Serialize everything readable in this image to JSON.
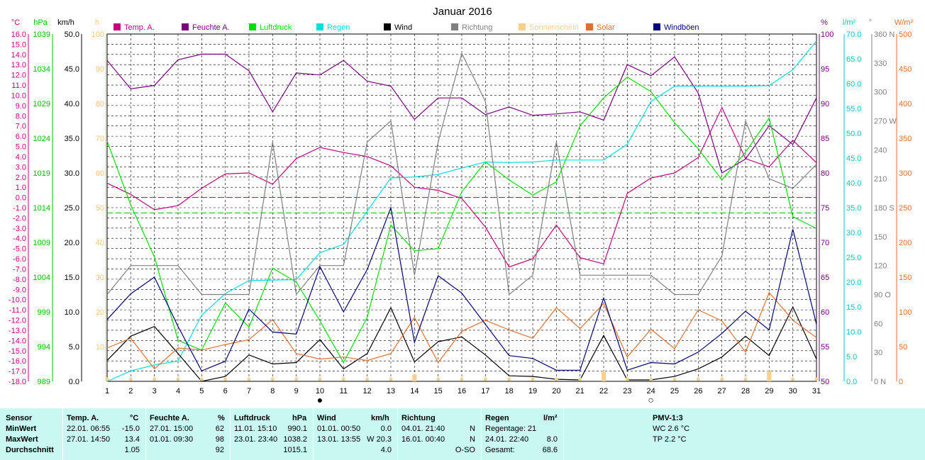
{
  "chart_data": {
    "type": "line",
    "title": "Januar 2016",
    "x": [
      1,
      2,
      3,
      4,
      5,
      6,
      7,
      8,
      9,
      10,
      11,
      12,
      13,
      14,
      15,
      16,
      17,
      18,
      19,
      20,
      21,
      22,
      23,
      24,
      25,
      26,
      27,
      28,
      29,
      30,
      31
    ],
    "xlim": [
      1,
      31
    ],
    "axes": {
      "temp": {
        "unit": "°C",
        "min": -18,
        "max": 16,
        "ticks": [
          "16.0",
          "15.0",
          "14.0",
          "13.0",
          "12.0",
          "11.0",
          "10.0",
          "9.0",
          "8.0",
          "7.0",
          "6.0",
          "5.0",
          "4.0",
          "3.0",
          "2.0",
          "1.0",
          "0.0",
          "-1.0",
          "-2.0",
          "-3.0",
          "-4.0",
          "-5.0",
          "-6.0",
          "-7.0",
          "-8.0",
          "-9.0",
          "-10.0",
          "-11.0",
          "-12.0",
          "-13.0",
          "-14.0",
          "-15.0",
          "-16.0",
          "-17.0",
          "-18.0"
        ]
      },
      "pressure": {
        "unit": "hPa",
        "min": 989,
        "max": 1039,
        "ticks": [
          "1039",
          "1034",
          "1029",
          "1024",
          "1019",
          "1014",
          "1009",
          "1004",
          "999",
          "994",
          "989"
        ]
      },
      "wind": {
        "unit": "km/h",
        "min": 0,
        "max": 50,
        "ticks": [
          "50.0",
          "45.0",
          "40.0",
          "35.0",
          "30.0",
          "25.0",
          "20.0",
          "15.0",
          "10.0",
          "5.0",
          "0.0"
        ]
      },
      "sunshine": {
        "unit": "h",
        "min": 0,
        "max": 100,
        "ticks": [
          "100",
          "90",
          "80",
          "70",
          "60",
          "50",
          "40",
          "30",
          "20",
          "10"
        ]
      },
      "humidity": {
        "unit": "%",
        "min": 50,
        "max": 100,
        "ticks": [
          "100",
          "95",
          "90",
          "85",
          "80",
          "75",
          "70",
          "65",
          "60",
          "55",
          "50"
        ]
      },
      "rain": {
        "unit": "l/m²",
        "min": 0,
        "max": 70,
        "ticks": [
          "70.0",
          "65.0",
          "60.0",
          "55.0",
          "50.0",
          "45.0",
          "40.0",
          "35.0",
          "30.0",
          "25.0",
          "20.0",
          "15.0",
          "10.0",
          "5.0",
          "0.0"
        ]
      },
      "direction": {
        "unit": "°",
        "min": 0,
        "max": 360,
        "ticks": [
          "360 N",
          "330",
          "300",
          "270 W",
          "240",
          "210",
          "180 S",
          "150",
          "120",
          "90  O",
          "60",
          "30",
          "0  N"
        ]
      },
      "solar": {
        "unit": "W/m²",
        "min": 0,
        "max": 500,
        "ticks": [
          "500",
          "450",
          "400",
          "350",
          "300",
          "250",
          "200",
          "150",
          "100",
          "50",
          "0"
        ]
      }
    },
    "series": [
      {
        "name": "Temp. A.",
        "axis": "temp",
        "color": "#c8007a",
        "values": [
          1.4,
          0.3,
          -1.2,
          -0.8,
          0.9,
          2.3,
          2.4,
          1.3,
          3.8,
          4.9,
          4.4,
          4.0,
          3.1,
          1.0,
          0.7,
          -0.1,
          -2.9,
          -6.8,
          -6.0,
          -2.7,
          -5.9,
          -6.5,
          0.4,
          1.9,
          2.4,
          3.9,
          8.8,
          3.8,
          3.0,
          5.6,
          3.4
        ]
      },
      {
        "name": "Feuchte A.",
        "axis": "humidity",
        "color": "#7a0080",
        "values": [
          96.2,
          92.1,
          92.6,
          96.3,
          97.1,
          97.1,
          94.7,
          88.8,
          94.4,
          94.1,
          96.2,
          93.2,
          92.5,
          87.7,
          90.8,
          90.8,
          88.4,
          89.5,
          88.3,
          88.5,
          88.8,
          87.6,
          95.6,
          94.0,
          96.7,
          91.5,
          80.0,
          82.0,
          86.8,
          84.1,
          90.8
        ]
      },
      {
        "name": "Luftdruck",
        "axis": "pressure",
        "color": "#00e000",
        "values": [
          1023.6,
          1014.4,
          1006.9,
          994.9,
          993.5,
          1000.3,
          996.8,
          1005.3,
          1003.3,
          997.7,
          991.7,
          998.2,
          1011.5,
          1007.8,
          1008.1,
          1016.3,
          1020.6,
          1018.0,
          1015.8,
          1017.7,
          1025.8,
          1029.8,
          1032.8,
          1030.7,
          1026.2,
          1022.5,
          1018.0,
          1022.0,
          1026.9,
          1012.7,
          1011.0
        ]
      },
      {
        "name": "Regen",
        "axis": "rain",
        "color": "#00e0e0",
        "values": [
          0.0,
          2.1,
          3.3,
          4.1,
          13.3,
          17.7,
          20.3,
          20.4,
          20.5,
          25.9,
          27.6,
          34.3,
          41.0,
          41.2,
          41.7,
          43.0,
          44.2,
          44.1,
          44.2,
          44.6,
          44.6,
          44.6,
          47.8,
          56.4,
          59.5,
          59.5,
          59.5,
          59.5,
          59.6,
          62.8,
          68.6
        ]
      },
      {
        "name": "Wind",
        "axis": "wind",
        "color": "#000000",
        "values": [
          3.0,
          6.5,
          7.9,
          4.0,
          0.0,
          0.7,
          3.8,
          2.5,
          2.7,
          6.0,
          1.8,
          4.0,
          10.6,
          2.8,
          5.7,
          6.4,
          3.8,
          0.8,
          0.7,
          0.3,
          0.2,
          6.6,
          0.2,
          0.2,
          0.7,
          1.8,
          3.5,
          6.5,
          3.7,
          10.7,
          3.2
        ]
      },
      {
        "name": "Richtung",
        "axis": "direction",
        "color": "#808080",
        "values": [
          90,
          120,
          120,
          120,
          90,
          90,
          90,
          248,
          90,
          120,
          120,
          248,
          270,
          110,
          248,
          340,
          290,
          90,
          110,
          248,
          110,
          110,
          110,
          110,
          90,
          90,
          130,
          270,
          210,
          200,
          225
        ]
      },
      {
        "name": "Sonnenschein",
        "axis": "sunshine",
        "color": "#f8d090",
        "values": [
          0,
          0,
          0,
          0,
          0,
          0,
          0,
          0,
          0,
          0,
          0,
          0,
          0,
          2,
          0,
          0,
          0,
          0,
          0,
          0,
          0,
          3,
          0,
          0,
          0,
          0,
          0,
          0,
          3,
          0,
          0
        ]
      },
      {
        "name": "Solar",
        "axis": "solar",
        "color": "#e07030",
        "values": [
          48,
          62,
          18,
          48,
          45,
          53,
          60,
          89,
          40,
          32,
          35,
          30,
          40,
          92,
          27,
          72,
          88,
          74,
          62,
          106,
          76,
          112,
          35,
          75,
          47,
          103,
          87,
          42,
          128,
          88,
          63
        ]
      },
      {
        "name": "Windböen",
        "axis": "wind",
        "color": "#00007a",
        "values": [
          8.9,
          12.6,
          15.0,
          7.9,
          1.5,
          2.9,
          10.4,
          7.1,
          6.8,
          16.5,
          10.0,
          16.1,
          25.0,
          5.6,
          15.2,
          12.7,
          8.2,
          3.7,
          3.3,
          1.6,
          1.6,
          12.0,
          1.6,
          2.7,
          2.5,
          4.2,
          6.9,
          10.1,
          7.4,
          21.9,
          8.2
        ]
      }
    ],
    "reference_lines": [
      {
        "axis": "temp",
        "value": 0,
        "color": "#c8007a"
      },
      {
        "axis": "pressure",
        "value": 1013.25,
        "color": "#00c000"
      }
    ],
    "markers": [
      {
        "day": 10,
        "symbol": "●"
      },
      {
        "day": 24,
        "symbol": "○"
      }
    ],
    "grid": true,
    "legend_position": "top"
  },
  "summary": {
    "columns": [
      {
        "header": "Sensor",
        "rows": [
          "MinWert",
          "MaxWert",
          "Durchschnitt"
        ]
      },
      {
        "header": "Temp. A.",
        "unit": "°C",
        "rows": [
          [
            "22.01.  06:55",
            "-15.0"
          ],
          [
            "27.01.  14:50",
            "13.4"
          ],
          [
            "",
            "1.05"
          ]
        ]
      },
      {
        "header": "Feuchte A.",
        "unit": "%",
        "rows": [
          [
            "27.01.  15:00",
            "62"
          ],
          [
            "01.01.  09:30",
            "98"
          ],
          [
            "",
            "92"
          ]
        ]
      },
      {
        "header": "Luftdruck",
        "unit": "hPa",
        "rows": [
          [
            "11.01.  15:10",
            "990.1"
          ],
          [
            "23.01.  23:40",
            "1038.2"
          ],
          [
            "",
            "1015.1"
          ]
        ]
      },
      {
        "header": "Wind",
        "unit": "km/h",
        "rows": [
          [
            "01.01.  00:50",
            "0.0"
          ],
          [
            "13.01.  13:55",
            "W 20.3"
          ],
          [
            "",
            "4.0"
          ]
        ]
      },
      {
        "header": "Richtung",
        "unit": "",
        "rows": [
          [
            "04.01.  21:40",
            "N"
          ],
          [
            "16.01.  00:40",
            "N"
          ],
          [
            "",
            "O-SO"
          ]
        ]
      },
      {
        "header": "Regen",
        "unit": "l/m²",
        "rows": [
          [
            "Regentage: 21",
            ""
          ],
          [
            "24.01.  22:40",
            "8.0"
          ],
          [
            "Gesamt:",
            "68.6"
          ]
        ]
      },
      {
        "header": "PMV-1:3",
        "rows": [
          "WC 2.6 °C",
          "TP 2.2 °C"
        ]
      }
    ]
  }
}
